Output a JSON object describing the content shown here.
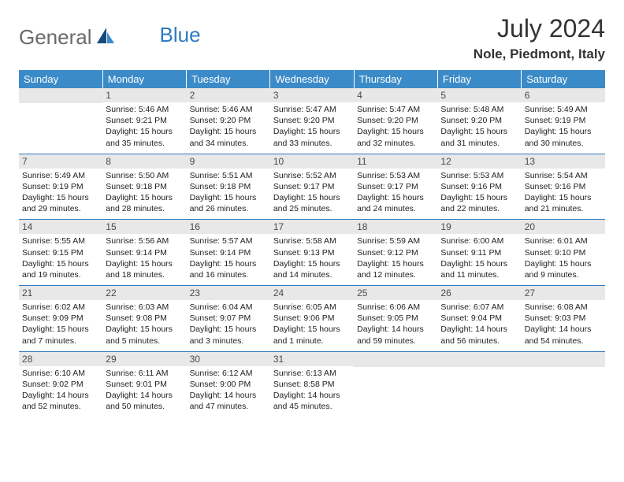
{
  "logo": {
    "text_general": "General",
    "text_blue": "Blue",
    "icon_color_dark": "#164a7a",
    "icon_color_light": "#3b8bc8"
  },
  "header": {
    "month_title": "July 2024",
    "location": "Nole, Piedmont, Italy"
  },
  "colors": {
    "header_bg": "#3b8bc8",
    "header_text": "#ffffff",
    "daynum_bg": "#e8e8e8",
    "daynum_text": "#4a4a4a",
    "body_text": "#222222",
    "row_border": "#2f7bbf"
  },
  "weekdays": [
    "Sunday",
    "Monday",
    "Tuesday",
    "Wednesday",
    "Thursday",
    "Friday",
    "Saturday"
  ],
  "weeks": [
    [
      null,
      {
        "day": "1",
        "sunrise": "5:46 AM",
        "sunset": "9:21 PM",
        "daylight": "15 hours and 35 minutes."
      },
      {
        "day": "2",
        "sunrise": "5:46 AM",
        "sunset": "9:20 PM",
        "daylight": "15 hours and 34 minutes."
      },
      {
        "day": "3",
        "sunrise": "5:47 AM",
        "sunset": "9:20 PM",
        "daylight": "15 hours and 33 minutes."
      },
      {
        "day": "4",
        "sunrise": "5:47 AM",
        "sunset": "9:20 PM",
        "daylight": "15 hours and 32 minutes."
      },
      {
        "day": "5",
        "sunrise": "5:48 AM",
        "sunset": "9:20 PM",
        "daylight": "15 hours and 31 minutes."
      },
      {
        "day": "6",
        "sunrise": "5:49 AM",
        "sunset": "9:19 PM",
        "daylight": "15 hours and 30 minutes."
      }
    ],
    [
      {
        "day": "7",
        "sunrise": "5:49 AM",
        "sunset": "9:19 PM",
        "daylight": "15 hours and 29 minutes."
      },
      {
        "day": "8",
        "sunrise": "5:50 AM",
        "sunset": "9:18 PM",
        "daylight": "15 hours and 28 minutes."
      },
      {
        "day": "9",
        "sunrise": "5:51 AM",
        "sunset": "9:18 PM",
        "daylight": "15 hours and 26 minutes."
      },
      {
        "day": "10",
        "sunrise": "5:52 AM",
        "sunset": "9:17 PM",
        "daylight": "15 hours and 25 minutes."
      },
      {
        "day": "11",
        "sunrise": "5:53 AM",
        "sunset": "9:17 PM",
        "daylight": "15 hours and 24 minutes."
      },
      {
        "day": "12",
        "sunrise": "5:53 AM",
        "sunset": "9:16 PM",
        "daylight": "15 hours and 22 minutes."
      },
      {
        "day": "13",
        "sunrise": "5:54 AM",
        "sunset": "9:16 PM",
        "daylight": "15 hours and 21 minutes."
      }
    ],
    [
      {
        "day": "14",
        "sunrise": "5:55 AM",
        "sunset": "9:15 PM",
        "daylight": "15 hours and 19 minutes."
      },
      {
        "day": "15",
        "sunrise": "5:56 AM",
        "sunset": "9:14 PM",
        "daylight": "15 hours and 18 minutes."
      },
      {
        "day": "16",
        "sunrise": "5:57 AM",
        "sunset": "9:14 PM",
        "daylight": "15 hours and 16 minutes."
      },
      {
        "day": "17",
        "sunrise": "5:58 AM",
        "sunset": "9:13 PM",
        "daylight": "15 hours and 14 minutes."
      },
      {
        "day": "18",
        "sunrise": "5:59 AM",
        "sunset": "9:12 PM",
        "daylight": "15 hours and 12 minutes."
      },
      {
        "day": "19",
        "sunrise": "6:00 AM",
        "sunset": "9:11 PM",
        "daylight": "15 hours and 11 minutes."
      },
      {
        "day": "20",
        "sunrise": "6:01 AM",
        "sunset": "9:10 PM",
        "daylight": "15 hours and 9 minutes."
      }
    ],
    [
      {
        "day": "21",
        "sunrise": "6:02 AM",
        "sunset": "9:09 PM",
        "daylight": "15 hours and 7 minutes."
      },
      {
        "day": "22",
        "sunrise": "6:03 AM",
        "sunset": "9:08 PM",
        "daylight": "15 hours and 5 minutes."
      },
      {
        "day": "23",
        "sunrise": "6:04 AM",
        "sunset": "9:07 PM",
        "daylight": "15 hours and 3 minutes."
      },
      {
        "day": "24",
        "sunrise": "6:05 AM",
        "sunset": "9:06 PM",
        "daylight": "15 hours and 1 minute."
      },
      {
        "day": "25",
        "sunrise": "6:06 AM",
        "sunset": "9:05 PM",
        "daylight": "14 hours and 59 minutes."
      },
      {
        "day": "26",
        "sunrise": "6:07 AM",
        "sunset": "9:04 PM",
        "daylight": "14 hours and 56 minutes."
      },
      {
        "day": "27",
        "sunrise": "6:08 AM",
        "sunset": "9:03 PM",
        "daylight": "14 hours and 54 minutes."
      }
    ],
    [
      {
        "day": "28",
        "sunrise": "6:10 AM",
        "sunset": "9:02 PM",
        "daylight": "14 hours and 52 minutes."
      },
      {
        "day": "29",
        "sunrise": "6:11 AM",
        "sunset": "9:01 PM",
        "daylight": "14 hours and 50 minutes."
      },
      {
        "day": "30",
        "sunrise": "6:12 AM",
        "sunset": "9:00 PM",
        "daylight": "14 hours and 47 minutes."
      },
      {
        "day": "31",
        "sunrise": "6:13 AM",
        "sunset": "8:58 PM",
        "daylight": "14 hours and 45 minutes."
      },
      null,
      null,
      null
    ]
  ],
  "labels": {
    "sunrise": "Sunrise:",
    "sunset": "Sunset:",
    "daylight": "Daylight:"
  }
}
